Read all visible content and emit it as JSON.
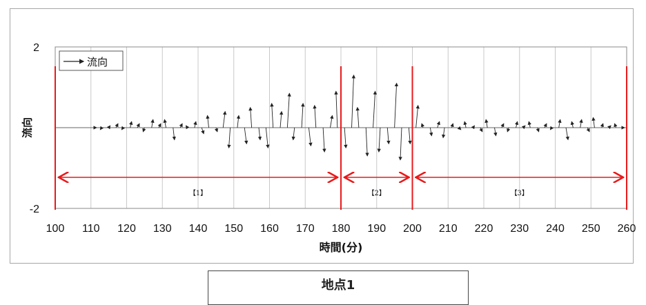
{
  "chart_data": {
    "type": "quiver",
    "xlabel": "時間(分)",
    "ylabel": "流向",
    "xlim": [
      100,
      260
    ],
    "ylim": [
      -2,
      2
    ],
    "x_ticks": [
      100,
      110,
      120,
      130,
      140,
      150,
      160,
      170,
      180,
      190,
      200,
      210,
      220,
      230,
      240,
      250,
      260
    ],
    "y_ticks": [
      2,
      -2
    ],
    "grid": "vertical",
    "legend": {
      "label": "流向",
      "position": "top-left"
    },
    "segment_boundaries": [
      100,
      180,
      200,
      260
    ],
    "segments": [
      {
        "label": "【1】",
        "from": 100,
        "to": 180
      },
      {
        "label": "【2】",
        "from": 180,
        "to": 200
      },
      {
        "label": "【3】",
        "from": 200,
        "to": 260
      }
    ],
    "series": [
      {
        "x": [
          111,
          113,
          115,
          117,
          119,
          121,
          123,
          125,
          127,
          129,
          131,
          133,
          135,
          137,
          139,
          141,
          143,
          145,
          147,
          149,
          151,
          153,
          155,
          157,
          159,
          161,
          163,
          165,
          167,
          169,
          171,
          173,
          175,
          177,
          179,
          181,
          183,
          185,
          187,
          189,
          191,
          193,
          195,
          197,
          199,
          201,
          203,
          205,
          207,
          209,
          211,
          213,
          215,
          217,
          219,
          221,
          223,
          225,
          227,
          229,
          231,
          233,
          235,
          237,
          239,
          241,
          243,
          245,
          247,
          249,
          251,
          253,
          255,
          257,
          259
        ],
        "y": [
          0.0,
          -0.05,
          0.05,
          0.1,
          -0.05,
          0.15,
          0.1,
          -0.1,
          0.2,
          0.1,
          0.2,
          -0.3,
          0.1,
          0.05,
          0.15,
          -0.15,
          0.3,
          -0.1,
          0.4,
          -0.5,
          0.3,
          -0.4,
          0.5,
          -0.3,
          -0.5,
          0.6,
          0.4,
          0.85,
          -0.3,
          0.6,
          -0.45,
          0.55,
          -0.6,
          0.3,
          0.9,
          -0.5,
          1.3,
          0.5,
          -0.7,
          0.9,
          -0.6,
          -0.4,
          1.1,
          -0.8,
          -0.4,
          0.55,
          0.1,
          -0.2,
          0.15,
          -0.25,
          0.1,
          -0.05,
          0.15,
          0.05,
          -0.1,
          0.2,
          -0.2,
          0.1,
          -0.1,
          0.15,
          0.05,
          0.15,
          -0.1,
          0.1,
          -0.05,
          0.2,
          -0.3,
          0.15,
          0.2,
          -0.1,
          0.25,
          0.1,
          0.05,
          0.1,
          0.0
        ]
      }
    ]
  },
  "site_label": "地点1"
}
